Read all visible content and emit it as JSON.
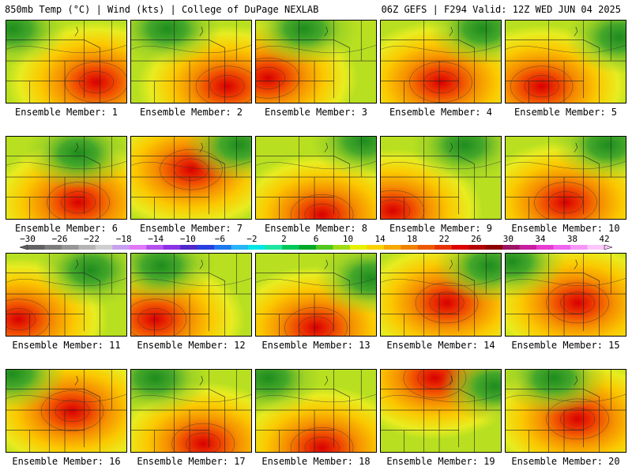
{
  "header": {
    "left": "850mb Temp (°C) | Wind (kts) | College of DuPage NEXLAB",
    "right": "06Z GEFS | F294 Valid: 12Z WED JUN 04 2025"
  },
  "members": [
    {
      "label": "Ensemble Member: 1",
      "hot": [
        0.75,
        0.75
      ],
      "cool": [
        0.05,
        0.1
      ]
    },
    {
      "label": "Ensemble Member: 2",
      "hot": [
        0.8,
        0.8
      ],
      "cool": [
        0.3,
        0.1
      ]
    },
    {
      "label": "Ensemble Member: 3",
      "hot": [
        0.1,
        0.7
      ],
      "cool": [
        0.4,
        0.1
      ]
    },
    {
      "label": "Ensemble Member: 4",
      "hot": [
        0.5,
        0.75
      ],
      "cool": [
        0.85,
        0.1
      ]
    },
    {
      "label": "Ensemble Member: 5",
      "hot": [
        0.3,
        0.8
      ],
      "cool": [
        0.95,
        0.2
      ]
    },
    {
      "label": "Ensemble Member: 6",
      "hot": [
        0.6,
        0.8
      ],
      "cool": [
        0.6,
        0.2
      ]
    },
    {
      "label": "Ensemble Member: 7",
      "hot": [
        0.5,
        0.4
      ],
      "cool": [
        0.9,
        0.1
      ]
    },
    {
      "label": "Ensemble Member: 8",
      "hot": [
        0.55,
        0.95
      ],
      "cool": [
        0.9,
        0.05
      ]
    },
    {
      "label": "Ensemble Member: 9",
      "hot": [
        0.1,
        0.9
      ],
      "cool": [
        0.7,
        0.1
      ]
    },
    {
      "label": "Ensemble Member: 10",
      "hot": [
        0.5,
        0.8
      ],
      "cool": [
        0.85,
        0.1
      ]
    },
    {
      "label": "Ensemble Member: 11",
      "hot": [
        0.1,
        0.8
      ],
      "cool": [
        0.7,
        0.2
      ]
    },
    {
      "label": "Ensemble Member: 12",
      "hot": [
        0.2,
        0.8
      ],
      "cool": [
        0.25,
        0.15
      ]
    },
    {
      "label": "Ensemble Member: 13",
      "hot": [
        0.5,
        0.9
      ],
      "cool": [
        0.95,
        0.3
      ]
    },
    {
      "label": "Ensemble Member: 14",
      "hot": [
        0.55,
        0.6
      ],
      "cool": [
        0.9,
        0.15
      ]
    },
    {
      "label": "Ensemble Member: 15",
      "hot": [
        0.6,
        0.6
      ],
      "cool": [
        0.05,
        0.1
      ]
    },
    {
      "label": "Ensemble Member: 16",
      "hot": [
        0.55,
        0.5
      ],
      "cool": [
        0.05,
        0.05
      ]
    },
    {
      "label": "Ensemble Member: 17",
      "hot": [
        0.6,
        0.9
      ],
      "cool": [
        0.2,
        0.1
      ]
    },
    {
      "label": "Ensemble Member: 18",
      "hot": [
        0.55,
        0.95
      ],
      "cool": [
        0.1,
        0.1
      ]
    },
    {
      "label": "Ensemble Member: 19",
      "hot": [
        0.45,
        0.1
      ],
      "cool": [
        0.95,
        0.2
      ]
    },
    {
      "label": "Ensemble Member: 20",
      "hot": [
        0.6,
        0.6
      ],
      "cool": [
        0.4,
        0.1
      ]
    }
  ],
  "colorbar": {
    "ticks": [
      "−30",
      "−26",
      "−22",
      "−18",
      "−14",
      "−10",
      "−6",
      "−2",
      "2",
      "6",
      "10",
      "14",
      "18",
      "22",
      "26",
      "30",
      "34",
      "38",
      "42"
    ],
    "colors": [
      "#626262",
      "#7c7c7c",
      "#969696",
      "#b4b4b4",
      "#cfcfcf",
      "#c8a0f0",
      "#e078f8",
      "#b450f0",
      "#8c32e6",
      "#5028c8",
      "#2840e0",
      "#1e78f0",
      "#28b4f8",
      "#00e6e6",
      "#1ee6a0",
      "#00c85a",
      "#00aa28",
      "#50c81e",
      "#a0dc14",
      "#e6f000",
      "#fad200",
      "#f5aa00",
      "#f08200",
      "#eb5a00",
      "#e63200",
      "#dc0000",
      "#b40000",
      "#8c0000",
      "#9c1464",
      "#c81ea0",
      "#e63cd2",
      "#f064f0",
      "#f896f8",
      "#fac8fa"
    ]
  }
}
